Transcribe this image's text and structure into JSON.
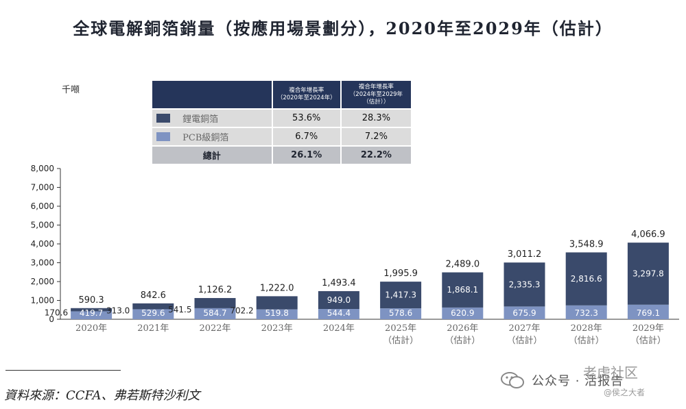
{
  "title": "全球電解銅箔銷量（按應用場景劃分），2020年至2029年（估計）",
  "unit_label": "千噸",
  "legend_table": {
    "header_col1": "複合年增長率\n（2020年至2024年）",
    "header_col2": "複合年增長率\n（2024年至2029年\n（估計））",
    "rows": [
      {
        "name": "鋰電銅箔",
        "cagr1": "53.6%",
        "cagr2": "28.3%",
        "color": "#3a4a6b"
      },
      {
        "name": "PCB級銅箔",
        "cagr1": "6.7%",
        "cagr2": "7.2%",
        "color": "#7e93c2"
      }
    ],
    "total": {
      "name": "總計",
      "cagr1": "26.1%",
      "cagr2": "22.2%"
    }
  },
  "chart_data": {
    "type": "bar",
    "stacked": true,
    "title": "全球電解銅箔銷量（按應用場景劃分），2020年至2029年（估計）",
    "ylabel": "千噸",
    "ylim": [
      0,
      8000
    ],
    "yticks": [
      "0",
      "1,000",
      "2,000",
      "3,000",
      "4,000",
      "5,000",
      "6,000",
      "7,000",
      "8,000"
    ],
    "ytick_values": [
      0,
      1000,
      2000,
      3000,
      4000,
      5000,
      6000,
      7000,
      8000
    ],
    "categories": [
      "2020年",
      "2021年",
      "2022年",
      "2023年",
      "2024年",
      "2025年",
      "2026年",
      "2027年",
      "2028年",
      "2029年"
    ],
    "category_sub": [
      "",
      "",
      "",
      "",
      "",
      "（估計）",
      "（估計）",
      "（估計）",
      "（估計）",
      "（估計）"
    ],
    "series": [
      {
        "name": "PCB級銅箔",
        "color": "#7e93c2",
        "values": [
          419.7,
          529.6,
          584.7,
          519.8,
          544.4,
          578.6,
          620.9,
          675.9,
          732.3,
          769.1
        ],
        "labels": [
          "419.7",
          "529.6",
          "584.7",
          "519.8",
          "544.4",
          "578.6",
          "620.9",
          "675.9",
          "732.3",
          "769.1"
        ]
      },
      {
        "name": "鋰電銅箔",
        "color": "#3a4a6b",
        "values": [
          170.6,
          313.0,
          541.5,
          702.2,
          949.0,
          1417.3,
          1868.1,
          2335.3,
          2816.6,
          3297.8
        ],
        "labels": [
          "170.6",
          "313.0",
          "541.5",
          "702.2",
          "949.0",
          "1,417.3",
          "1,868.1",
          "2,335.3",
          "2,816.6",
          "3,297.8"
        ]
      }
    ],
    "totals": [
      590.3,
      842.6,
      1126.2,
      1222.0,
      1493.4,
      1995.9,
      2489.0,
      3011.2,
      3548.9,
      4066.9
    ],
    "total_labels": [
      "590.3",
      "842.6",
      "1,126.2",
      "1,222.0",
      "1,493.4",
      "1,995.9",
      "2,489.0",
      "3,011.2",
      "3,548.9",
      "4,066.9"
    ]
  },
  "source": "資料來源：CCFA、弗若斯特沙利文",
  "watermark": {
    "main": "公众号 · 活报告",
    "top": "老虎社区",
    "sub": "@侯之大者"
  }
}
